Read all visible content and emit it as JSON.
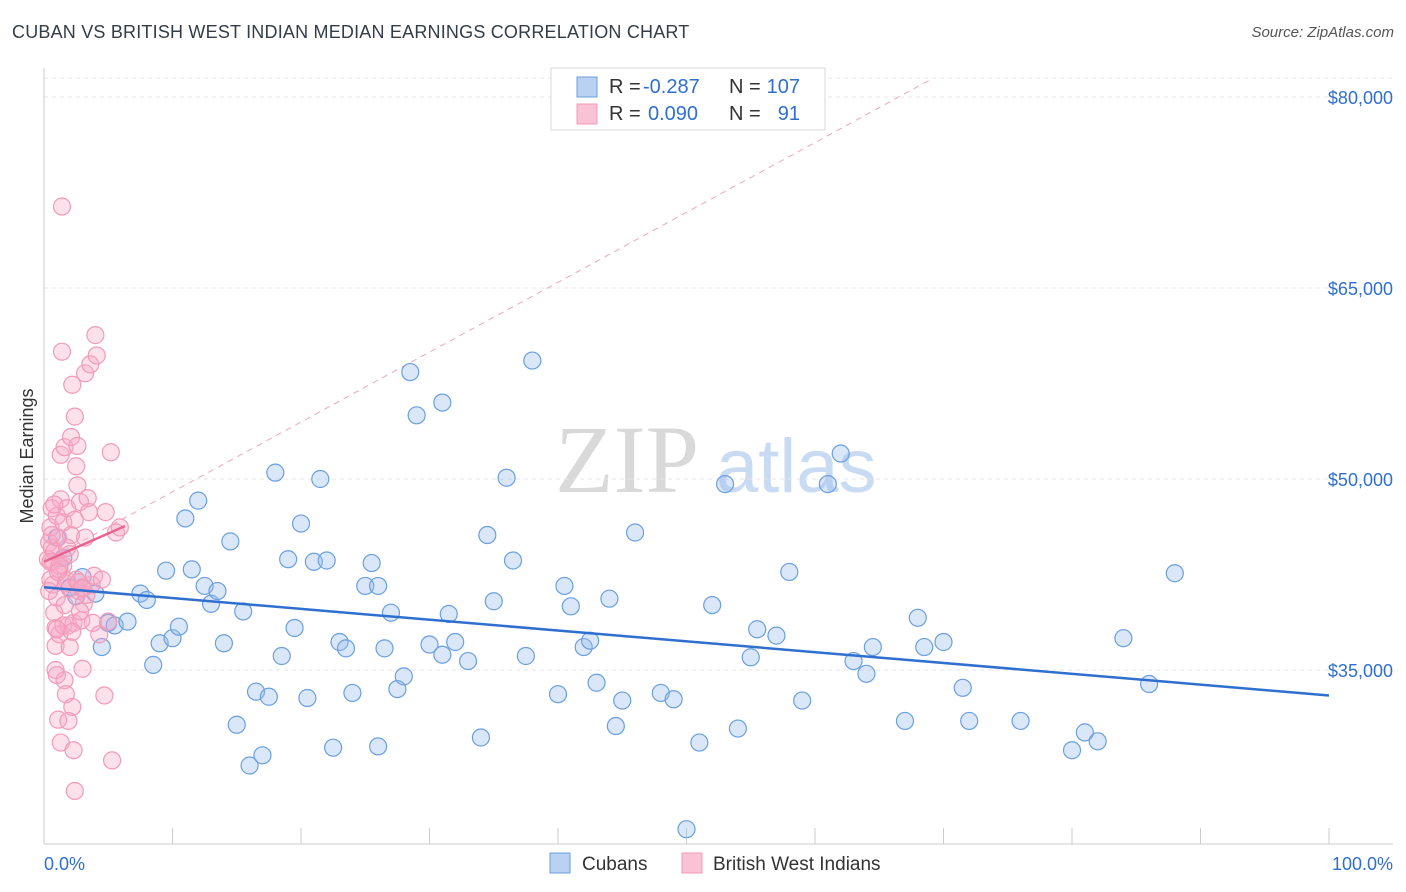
{
  "title": "CUBAN VS BRITISH WEST INDIAN MEDIAN EARNINGS CORRELATION CHART",
  "source": "Source: ZipAtlas.com",
  "watermark": {
    "zip": "ZIP",
    "atlas": "atlas"
  },
  "colors": {
    "blue": "#6a9fe0",
    "blue_line": "#2f6fcf",
    "pink": "#f39ab8",
    "pink_line": "#e8648f",
    "axis_text": "#2f6fcf",
    "grid": "#e6e6e6"
  },
  "legend": {
    "rows": [
      {
        "r_label": "R =",
        "r_value": "-0.287",
        "n_label": "N =",
        "n_value": "107"
      },
      {
        "r_label": "R =",
        "r_value": "0.090",
        "n_label": "N =",
        "n_value": "91"
      }
    ]
  },
  "bottom_legend": [
    "Cubans",
    "British West Indians"
  ],
  "chart_data": {
    "type": "scatter",
    "ylabel": "Median Earnings",
    "x_tick_labels": [
      "0.0%",
      "100.0%"
    ],
    "y_tick_labels": [
      "$35,000",
      "$50,000",
      "$65,000",
      "$80,000"
    ],
    "y_ticks": [
      35000,
      50000,
      65000,
      80000
    ],
    "xlim": [
      0,
      100
    ],
    "ylim": [
      20000,
      82000
    ],
    "series": [
      {
        "name": "Cubans",
        "trend": {
          "x": [
            0,
            100
          ],
          "y": [
            41500,
            33000
          ]
        },
        "points": [
          [
            1,
            45400
          ],
          [
            1.5,
            43800
          ],
          [
            2,
            41500
          ],
          [
            2.5,
            40800
          ],
          [
            3,
            42300
          ],
          [
            4,
            41000
          ],
          [
            4.5,
            36800
          ],
          [
            5,
            38700
          ],
          [
            5.5,
            38500
          ],
          [
            6.5,
            38800
          ],
          [
            7.5,
            41000
          ],
          [
            8,
            40500
          ],
          [
            8.5,
            35400
          ],
          [
            9,
            37100
          ],
          [
            9.5,
            42800
          ],
          [
            10,
            37500
          ],
          [
            10.5,
            38400
          ],
          [
            11,
            46900
          ],
          [
            11.5,
            42900
          ],
          [
            12,
            48300
          ],
          [
            12.5,
            41600
          ],
          [
            13,
            40200
          ],
          [
            13.5,
            41200
          ],
          [
            14,
            37100
          ],
          [
            14.5,
            45100
          ],
          [
            15,
            30700
          ],
          [
            15.5,
            39600
          ],
          [
            16,
            27500
          ],
          [
            16.5,
            33300
          ],
          [
            17,
            28300
          ],
          [
            17.5,
            32900
          ],
          [
            18,
            50500
          ],
          [
            18.5,
            36100
          ],
          [
            19,
            43700
          ],
          [
            19.5,
            38300
          ],
          [
            20,
            46500
          ],
          [
            20.5,
            32800
          ],
          [
            21,
            43500
          ],
          [
            21.5,
            50000
          ],
          [
            22,
            43600
          ],
          [
            22.5,
            28900
          ],
          [
            23,
            37200
          ],
          [
            23.5,
            36700
          ],
          [
            24,
            33200
          ],
          [
            25,
            41600
          ],
          [
            25.5,
            43400
          ],
          [
            26,
            29000
          ],
          [
            26.5,
            36700
          ],
          [
            27,
            39500
          ],
          [
            27.5,
            33500
          ],
          [
            28,
            34500
          ],
          [
            28.5,
            58400
          ],
          [
            29,
            55000
          ],
          [
            30,
            37000
          ],
          [
            31,
            36200
          ],
          [
            31.5,
            39400
          ],
          [
            32,
            37200
          ],
          [
            33,
            35700
          ],
          [
            34,
            29700
          ],
          [
            34.5,
            45600
          ],
          [
            35,
            40400
          ],
          [
            36,
            50100
          ],
          [
            36.5,
            43600
          ],
          [
            37.5,
            36100
          ],
          [
            38,
            59300
          ],
          [
            40,
            33100
          ],
          [
            40.5,
            41600
          ],
          [
            41,
            40000
          ],
          [
            42,
            36800
          ],
          [
            42.5,
            37300
          ],
          [
            43,
            34000
          ],
          [
            44,
            40600
          ],
          [
            44.5,
            30600
          ],
          [
            45,
            32600
          ],
          [
            46,
            45800
          ],
          [
            48,
            33200
          ],
          [
            49,
            32700
          ],
          [
            51,
            29300
          ],
          [
            52,
            40100
          ],
          [
            53,
            49600
          ],
          [
            54,
            30400
          ],
          [
            55,
            36000
          ],
          [
            55.5,
            38200
          ],
          [
            57,
            37700
          ],
          [
            58,
            42700
          ],
          [
            59,
            32600
          ],
          [
            61,
            49600
          ],
          [
            62,
            52000
          ],
          [
            63,
            35700
          ],
          [
            64,
            34700
          ],
          [
            64.5,
            36800
          ],
          [
            67,
            31000
          ],
          [
            68,
            39100
          ],
          [
            68.5,
            36800
          ],
          [
            70,
            37200
          ],
          [
            71.5,
            33600
          ],
          [
            72,
            31000
          ],
          [
            76,
            31000
          ],
          [
            80,
            28700
          ],
          [
            81,
            30100
          ],
          [
            82,
            29400
          ],
          [
            84,
            37500
          ],
          [
            86,
            33900
          ],
          [
            88,
            42600
          ],
          [
            50,
            22500
          ],
          [
            26,
            41600
          ],
          [
            31,
            56000
          ]
        ]
      },
      {
        "name": "British West Indians",
        "trend": {
          "x": [
            0,
            6.3
          ],
          "y": [
            43500,
            46300
          ]
        },
        "points": [
          [
            0.3,
            43700
          ],
          [
            0.4,
            45000
          ],
          [
            0.5,
            42100
          ],
          [
            0.5,
            46200
          ],
          [
            0.6,
            47700
          ],
          [
            0.6,
            44600
          ],
          [
            0.7,
            43500
          ],
          [
            0.7,
            41700
          ],
          [
            0.8,
            44300
          ],
          [
            0.8,
            39500
          ],
          [
            0.9,
            38300
          ],
          [
            0.9,
            36900
          ],
          [
            1,
            40700
          ],
          [
            1,
            34600
          ],
          [
            1,
            47100
          ],
          [
            1.1,
            31100
          ],
          [
            1.1,
            45400
          ],
          [
            1.2,
            42900
          ],
          [
            1.2,
            37800
          ],
          [
            1.3,
            48400
          ],
          [
            1.3,
            51900
          ],
          [
            1.3,
            29300
          ],
          [
            1.4,
            71400
          ],
          [
            1.4,
            60000
          ],
          [
            1.5,
            43200
          ],
          [
            1.5,
            38500
          ],
          [
            1.6,
            34200
          ],
          [
            1.6,
            52500
          ],
          [
            1.7,
            41800
          ],
          [
            1.7,
            33100
          ],
          [
            1.8,
            42000
          ],
          [
            1.8,
            47700
          ],
          [
            1.9,
            31000
          ],
          [
            1.9,
            38500
          ],
          [
            2,
            41400
          ],
          [
            2,
            36800
          ],
          [
            2.1,
            45600
          ],
          [
            2.1,
            53300
          ],
          [
            2.2,
            57400
          ],
          [
            2.2,
            32100
          ],
          [
            2.3,
            38700
          ],
          [
            2.3,
            28700
          ],
          [
            2.4,
            54900
          ],
          [
            2.4,
            25500
          ],
          [
            2.5,
            51000
          ],
          [
            2.5,
            42100
          ],
          [
            2.6,
            49500
          ],
          [
            2.6,
            52600
          ],
          [
            2.7,
            41200
          ],
          [
            2.8,
            48200
          ],
          [
            2.9,
            38900
          ],
          [
            3,
            41500
          ],
          [
            3,
            35100
          ],
          [
            3.1,
            40200
          ],
          [
            3.2,
            45400
          ],
          [
            3.2,
            58300
          ],
          [
            3.4,
            48500
          ],
          [
            3.5,
            47400
          ],
          [
            3.6,
            59000
          ],
          [
            3.7,
            41700
          ],
          [
            3.8,
            38700
          ],
          [
            3.9,
            42400
          ],
          [
            4,
            61300
          ],
          [
            4.1,
            59700
          ],
          [
            4.3,
            37800
          ],
          [
            4.5,
            42100
          ],
          [
            4.7,
            33000
          ],
          [
            4.8,
            47400
          ],
          [
            5,
            38800
          ],
          [
            5.2,
            52100
          ],
          [
            5.3,
            27900
          ],
          [
            5.6,
            45800
          ],
          [
            5.9,
            46200
          ],
          [
            0.5,
            43500
          ],
          [
            0.8,
            48000
          ],
          [
            1.5,
            46600
          ],
          [
            2,
            44100
          ],
          [
            2.7,
            41900
          ],
          [
            3.3,
            40900
          ],
          [
            1,
            38200
          ],
          [
            1.2,
            43200
          ],
          [
            2.2,
            38000
          ],
          [
            0.6,
            45600
          ],
          [
            1.8,
            44600
          ],
          [
            3,
            41400
          ],
          [
            0.9,
            35000
          ],
          [
            1.6,
            40100
          ],
          [
            2.4,
            46800
          ],
          [
            0.4,
            41200
          ],
          [
            1.1,
            42700
          ],
          [
            2.8,
            39600
          ]
        ]
      }
    ]
  }
}
